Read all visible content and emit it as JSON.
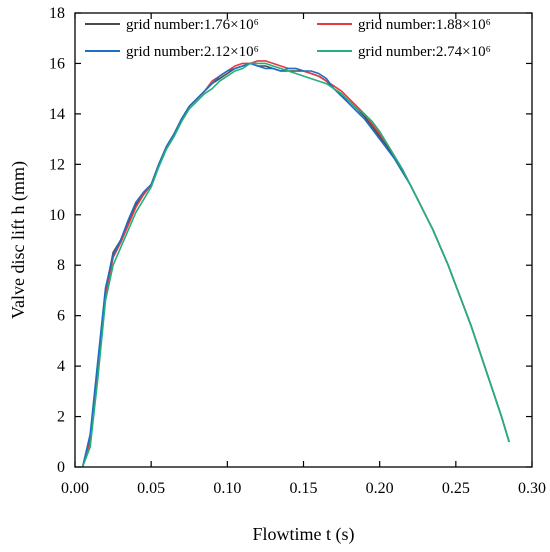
{
  "chart_data": {
    "type": "line",
    "title": "",
    "xlabel": "Flowtime t (s)",
    "ylabel": "Valve disc lift h (mm)",
    "xlim": [
      0.0,
      0.3
    ],
    "ylim": [
      0,
      18
    ],
    "x_ticks": [
      "0.00",
      "0.05",
      "0.10",
      "0.15",
      "0.20",
      "0.25",
      "0.30"
    ],
    "y_ticks": [
      "0",
      "2",
      "4",
      "6",
      "8",
      "10",
      "12",
      "14",
      "16",
      "18"
    ],
    "grid": false,
    "legend_position": "top",
    "series": [
      {
        "name": "grid number:1.76×10⁶",
        "color": "#4a4a4a",
        "x": [
          0.005,
          0.01,
          0.015,
          0.02,
          0.025,
          0.03,
          0.035,
          0.04,
          0.045,
          0.05,
          0.055,
          0.06,
          0.065,
          0.07,
          0.075,
          0.08,
          0.085,
          0.09,
          0.095,
          0.1,
          0.105,
          0.11,
          0.115,
          0.12,
          0.125,
          0.13,
          0.135,
          0.14,
          0.145,
          0.15,
          0.155,
          0.16,
          0.165,
          0.17,
          0.175,
          0.18,
          0.185,
          0.19,
          0.195,
          0.2,
          0.205,
          0.21,
          0.215,
          0.22,
          0.225,
          0.23,
          0.235,
          0.24,
          0.245,
          0.25,
          0.255,
          0.26,
          0.265,
          0.27,
          0.275,
          0.28,
          0.285
        ],
        "y": [
          0.0,
          1.2,
          4.0,
          7.0,
          8.5,
          9.0,
          9.7,
          10.4,
          10.8,
          11.2,
          12.0,
          12.7,
          13.2,
          13.8,
          14.3,
          14.6,
          14.9,
          15.2,
          15.4,
          15.6,
          15.8,
          15.9,
          16.0,
          15.9,
          15.9,
          15.8,
          15.7,
          15.7,
          15.7,
          15.7,
          15.6,
          15.5,
          15.3,
          15.0,
          14.7,
          14.5,
          14.2,
          13.9,
          13.5,
          13.1,
          12.7,
          12.2,
          11.7,
          11.2,
          10.6,
          10.0,
          9.4,
          8.7,
          8.0,
          7.2,
          6.4,
          5.6,
          4.7,
          3.8,
          2.9,
          2.0,
          1.0
        ]
      },
      {
        "name": "grid number:1.88×10⁶",
        "color": "#e8393f",
        "x": [
          0.005,
          0.01,
          0.015,
          0.02,
          0.025,
          0.03,
          0.035,
          0.04,
          0.045,
          0.05,
          0.055,
          0.06,
          0.065,
          0.07,
          0.075,
          0.08,
          0.085,
          0.09,
          0.095,
          0.1,
          0.105,
          0.11,
          0.115,
          0.12,
          0.125,
          0.13,
          0.135,
          0.14,
          0.145,
          0.15,
          0.155,
          0.16,
          0.165,
          0.17,
          0.175,
          0.18,
          0.185,
          0.19,
          0.195,
          0.2,
          0.205,
          0.21,
          0.215,
          0.22,
          0.225,
          0.23,
          0.235,
          0.24,
          0.245,
          0.25,
          0.255,
          0.26,
          0.265,
          0.27,
          0.275,
          0.28,
          0.285
        ],
        "y": [
          0.0,
          1.0,
          3.8,
          6.8,
          8.3,
          8.9,
          9.6,
          10.3,
          10.8,
          11.2,
          12.0,
          12.7,
          13.2,
          13.8,
          14.3,
          14.6,
          14.9,
          15.3,
          15.5,
          15.7,
          15.9,
          16.0,
          16.0,
          16.1,
          16.1,
          16.0,
          15.9,
          15.8,
          15.8,
          15.7,
          15.6,
          15.5,
          15.3,
          15.1,
          14.9,
          14.6,
          14.3,
          14.0,
          13.6,
          13.2,
          12.8,
          12.3,
          11.8,
          11.2,
          10.6,
          10.0,
          9.4,
          8.7,
          8.0,
          7.2,
          6.4,
          5.6,
          4.7,
          3.8,
          2.9,
          2.0,
          1.0
        ]
      },
      {
        "name": "grid number:2.12×10⁶",
        "color": "#1f6fc5",
        "x": [
          0.005,
          0.01,
          0.015,
          0.02,
          0.025,
          0.03,
          0.035,
          0.04,
          0.045,
          0.05,
          0.055,
          0.06,
          0.065,
          0.07,
          0.075,
          0.08,
          0.085,
          0.09,
          0.095,
          0.1,
          0.105,
          0.11,
          0.115,
          0.12,
          0.125,
          0.13,
          0.135,
          0.14,
          0.145,
          0.15,
          0.155,
          0.16,
          0.165,
          0.17,
          0.175,
          0.18,
          0.185,
          0.19,
          0.195,
          0.2,
          0.205,
          0.21,
          0.215,
          0.22,
          0.225,
          0.23,
          0.235,
          0.24,
          0.245,
          0.25,
          0.255,
          0.26,
          0.265,
          0.27,
          0.275,
          0.28,
          0.285
        ],
        "y": [
          0.0,
          1.3,
          4.2,
          7.1,
          8.4,
          9.0,
          9.8,
          10.5,
          10.9,
          11.2,
          12.0,
          12.7,
          13.2,
          13.8,
          14.3,
          14.6,
          14.9,
          15.2,
          15.5,
          15.7,
          15.8,
          15.9,
          16.0,
          15.9,
          15.8,
          15.8,
          15.7,
          15.8,
          15.8,
          15.7,
          15.7,
          15.6,
          15.4,
          15.0,
          14.7,
          14.4,
          14.1,
          13.8,
          13.4,
          13.0,
          12.6,
          12.2,
          11.7,
          11.2,
          10.6,
          10.0,
          9.4,
          8.7,
          8.0,
          7.2,
          6.4,
          5.6,
          4.7,
          3.8,
          2.9,
          2.0,
          1.0
        ]
      },
      {
        "name": "grid number:2.74×10⁶",
        "color": "#22b07d",
        "x": [
          0.005,
          0.01,
          0.015,
          0.02,
          0.025,
          0.03,
          0.035,
          0.04,
          0.045,
          0.05,
          0.055,
          0.06,
          0.065,
          0.07,
          0.075,
          0.08,
          0.085,
          0.09,
          0.095,
          0.1,
          0.105,
          0.11,
          0.115,
          0.12,
          0.125,
          0.13,
          0.135,
          0.14,
          0.145,
          0.15,
          0.155,
          0.16,
          0.165,
          0.17,
          0.175,
          0.18,
          0.185,
          0.19,
          0.195,
          0.2,
          0.205,
          0.21,
          0.215,
          0.22,
          0.225,
          0.23,
          0.235,
          0.24,
          0.245,
          0.25,
          0.255,
          0.26,
          0.265,
          0.27,
          0.275,
          0.28,
          0.285
        ],
        "y": [
          0.0,
          0.8,
          3.5,
          6.6,
          8.0,
          8.7,
          9.4,
          10.1,
          10.6,
          11.1,
          11.9,
          12.6,
          13.1,
          13.7,
          14.2,
          14.5,
          14.8,
          15.0,
          15.3,
          15.5,
          15.7,
          15.8,
          16.0,
          16.0,
          16.0,
          15.9,
          15.8,
          15.7,
          15.6,
          15.5,
          15.4,
          15.3,
          15.2,
          15.0,
          14.8,
          14.5,
          14.2,
          14.0,
          13.7,
          13.3,
          12.8,
          12.3,
          11.8,
          11.2,
          10.6,
          10.0,
          9.4,
          8.7,
          8.0,
          7.2,
          6.4,
          5.6,
          4.7,
          3.8,
          2.9,
          2.0,
          1.0
        ]
      }
    ]
  }
}
